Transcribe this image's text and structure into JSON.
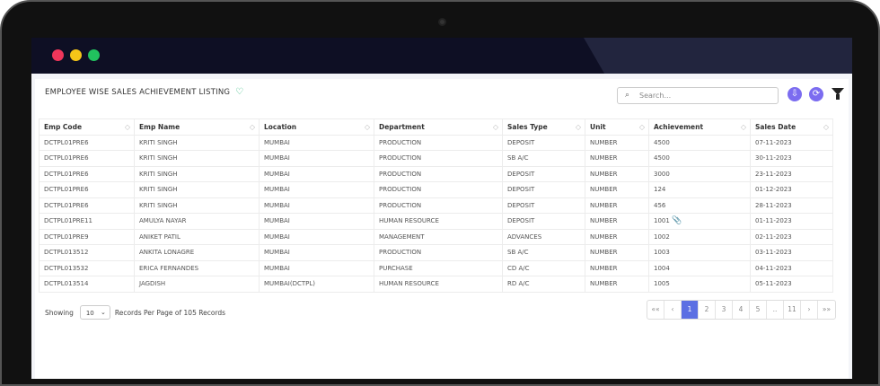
{
  "window": {
    "dots": [
      "#f0365a",
      "#f5c518",
      "#21c25e"
    ]
  },
  "page": {
    "title": "EMPLOYEE WISE SALES ACHIEVEMENT LISTING",
    "search_placeholder": "Search..."
  },
  "table": {
    "columns": [
      "Emp Code",
      "Emp Name",
      "Location",
      "Department",
      "Sales Type",
      "Unit",
      "Achievement",
      "Sales Date"
    ],
    "rows": [
      [
        "DCTPL01PRE6",
        "KRITI SINGH",
        "MUMBAI",
        "PRODUCTION",
        "DEPOSIT",
        "NUMBER",
        "4500",
        "07-11-2023"
      ],
      [
        "DCTPL01PRE6",
        "KRITI SINGH",
        "MUMBAI",
        "PRODUCTION",
        "SB A/C",
        "NUMBER",
        "4500",
        "30-11-2023"
      ],
      [
        "DCTPL01PRE6",
        "KRITI SINGH",
        "MUMBAI",
        "PRODUCTION",
        "DEPOSIT",
        "NUMBER",
        "3000",
        "23-11-2023"
      ],
      [
        "DCTPL01PRE6",
        "KRITI SINGH",
        "MUMBAI",
        "PRODUCTION",
        "DEPOSIT",
        "NUMBER",
        "124",
        "01-12-2023"
      ],
      [
        "DCTPL01PRE6",
        "KRITI SINGH",
        "MUMBAI",
        "PRODUCTION",
        "DEPOSIT",
        "NUMBER",
        "456",
        "28-11-2023"
      ],
      [
        "DCTPL01PRE11",
        "AMULYA NAYAR",
        "MUMBAI",
        "HUMAN RESOURCE",
        "DEPOSIT",
        "NUMBER",
        "1001",
        "01-11-2023"
      ],
      [
        "DCTPL01PRE9",
        "ANIKET PATIL",
        "MUMBAI",
        "MANAGEMENT",
        "ADVANCES",
        "NUMBER",
        "1002",
        "02-11-2023"
      ],
      [
        "DCTPL013512",
        "ANKITA LONAGRE",
        "MUMBAI",
        "PRODUCTION",
        "SB A/C",
        "NUMBER",
        "1003",
        "03-11-2023"
      ],
      [
        "DCTPL013532",
        "ERICA FERNANDES",
        "MUMBAI",
        "PURCHASE",
        "CD A/C",
        "NUMBER",
        "1004",
        "04-11-2023"
      ],
      [
        "DCTPL013514",
        "JAGDISH",
        "MUMBAI(DCTPL)",
        "HUMAN RESOURCE",
        "RD A/C",
        "NUMBER",
        "1005",
        "05-11-2023"
      ]
    ]
  },
  "footer": {
    "showing": "Showing",
    "per_page": "10",
    "records_text": "Records Per Page of 105 Records"
  },
  "pagination": {
    "items": [
      "««",
      "‹",
      "1",
      "2",
      "3",
      "4",
      "5",
      "..",
      "11",
      "›",
      "»»"
    ],
    "active": "1"
  }
}
